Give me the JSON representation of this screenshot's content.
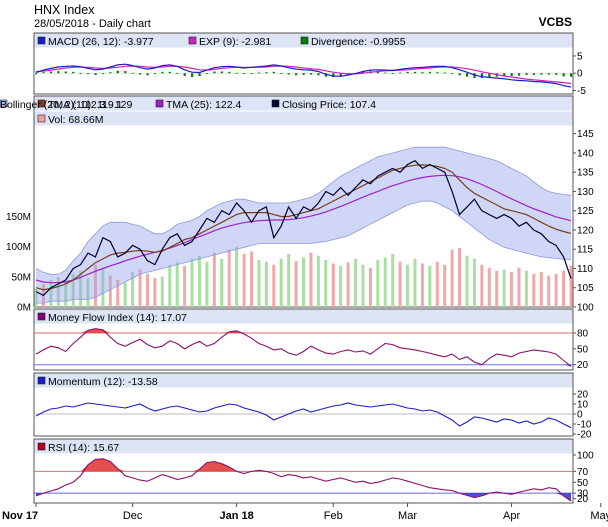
{
  "header": {
    "title": "HNX Index",
    "subtitle": "28/05/2018 - Daily chart",
    "brand": "VCBS"
  },
  "x_axis": {
    "labels": [
      "Nov 17",
      "Dec",
      "Jan 18",
      "Feb",
      "Mar",
      "Apr",
      "May"
    ]
  },
  "chart_data": [
    {
      "type": "line",
      "panel": "macd",
      "legend": [
        {
          "label": "MACD (26, 12): -3.977",
          "color": "#1c1cc8"
        },
        {
          "label": "EXP (9): -2.981",
          "color": "#d020c0"
        },
        {
          "label": "Divergence: -0.9955",
          "color": "#008000"
        }
      ],
      "ylim": [
        -6,
        7
      ],
      "yticks": [
        5,
        0,
        -5
      ],
      "macd": [
        0.2,
        0.9,
        1.4,
        1.8,
        2.0,
        2.1,
        1.9,
        1.4,
        1.0,
        1.2,
        1.8,
        2.4,
        2.6,
        2.2,
        1.6,
        1.2,
        1.5,
        2.2,
        2.4,
        2.0,
        1.0,
        0.3,
        0.2,
        0.9,
        1.6,
        1.9,
        2.0,
        1.8,
        1.5,
        1.7,
        1.9,
        2.1,
        2.4,
        2.1,
        1.6,
        1.2,
        1.0,
        0.9,
        0.5,
        -0.3,
        -0.8,
        -0.9,
        -0.5,
        -0.1,
        0.5,
        0.9,
        1.0,
        0.9,
        0.8,
        1.1,
        1.4,
        1.6,
        1.7,
        1.9,
        2.0,
        2.0,
        1.6,
        1.0,
        0.3,
        -0.5,
        -1.0,
        -1.2,
        -1.4,
        -1.6,
        -1.9,
        -2.1,
        -2.2,
        -2.4,
        -2.5,
        -2.7,
        -3.0,
        -3.6,
        -3.977
      ],
      "exp": [
        0.5,
        0.6,
        0.9,
        1.2,
        1.5,
        1.7,
        1.8,
        1.7,
        1.5,
        1.4,
        1.5,
        1.7,
        2.0,
        2.1,
        2.0,
        1.8,
        1.7,
        1.8,
        2.0,
        2.0,
        1.8,
        1.4,
        1.0,
        0.9,
        1.1,
        1.4,
        1.6,
        1.7,
        1.7,
        1.7,
        1.7,
        1.8,
        2.0,
        2.1,
        2.0,
        1.8,
        1.5,
        1.3,
        1.1,
        0.7,
        0.3,
        0.0,
        -0.2,
        -0.2,
        0.0,
        0.3,
        0.5,
        0.7,
        0.8,
        0.9,
        1.0,
        1.2,
        1.4,
        1.5,
        1.7,
        1.8,
        1.8,
        1.6,
        1.3,
        0.9,
        0.4,
        0.0,
        -0.4,
        -0.8,
        -1.1,
        -1.4,
        -1.7,
        -1.9,
        -2.1,
        -2.3,
        -2.5,
        -2.7,
        -2.981
      ],
      "divergence": [
        -0.3,
        0.3,
        0.5,
        0.6,
        0.5,
        0.4,
        0.1,
        -0.3,
        -0.5,
        -0.2,
        0.3,
        0.7,
        0.6,
        0.1,
        -0.4,
        -0.6,
        -0.2,
        0.4,
        0.4,
        0.0,
        -0.8,
        -1.1,
        -0.8,
        0.0,
        0.5,
        0.5,
        0.4,
        0.1,
        -0.2,
        0.0,
        0.2,
        0.3,
        0.4,
        0.0,
        -0.4,
        -0.6,
        -0.5,
        -0.4,
        -0.6,
        -1.0,
        -1.1,
        -0.9,
        -0.3,
        0.1,
        0.5,
        0.6,
        0.5,
        0.2,
        0.0,
        0.2,
        0.4,
        0.4,
        0.3,
        0.4,
        0.3,
        0.2,
        -0.2,
        -0.6,
        -1.0,
        -1.4,
        -1.4,
        -1.2,
        -1.0,
        -0.8,
        -0.8,
        -0.7,
        -0.5,
        -0.5,
        -0.4,
        -0.4,
        -0.5,
        -0.9,
        -0.9955
      ]
    },
    {
      "type": "line",
      "panel": "price",
      "legend": [
        {
          "label": "TMA (10): 119.1",
          "color": "#7a3c1c"
        },
        {
          "label": "TMA (25): 122.4",
          "color": "#a020c8"
        },
        {
          "label": "Closing Price: 107.4",
          "color": "#000030"
        },
        {
          "label": "Bollinger (20, 2): 112.3 - 129",
          "color": "#aab4f0"
        },
        {
          "label": "Vol: 68.66M",
          "color": "#f0a0a0"
        }
      ],
      "ylim": [
        100,
        147
      ],
      "yticks": [
        145,
        140,
        135,
        130,
        125,
        120,
        115,
        110,
        105,
        100
      ],
      "vol_ylim": [
        0,
        300
      ],
      "vol_ticks": [
        {
          "v": 150,
          "label": "150M"
        },
        {
          "v": 100,
          "label": "100M"
        },
        {
          "v": 50,
          "label": "50M"
        },
        {
          "v": 0,
          "label": "0M"
        }
      ],
      "close": [
        104,
        103,
        105,
        106,
        107,
        110,
        111,
        114,
        113,
        118,
        117,
        113,
        114,
        116,
        115,
        112,
        111,
        115,
        118,
        119,
        116,
        117,
        120,
        123,
        122,
        125,
        124,
        127,
        125,
        122,
        125,
        126,
        118,
        121,
        126,
        123,
        126,
        125,
        127,
        130,
        129,
        131,
        129,
        131,
        133,
        132,
        134,
        135,
        136,
        135,
        137,
        138,
        136,
        137,
        136,
        135,
        130,
        124,
        126,
        128,
        125,
        124,
        123,
        124,
        123,
        121,
        122,
        120,
        119,
        117,
        116,
        113,
        107.4
      ],
      "tma10": [
        105,
        104.5,
        104.8,
        105.3,
        106,
        107,
        108.5,
        110,
        111.5,
        112.5,
        113.5,
        114,
        114.2,
        114.5,
        114.7,
        114.5,
        114.2,
        114.5,
        115.5,
        116.5,
        117.5,
        118,
        119,
        120,
        121,
        122,
        123,
        124,
        124.5,
        124.5,
        124.5,
        124.5,
        124,
        123.5,
        123.5,
        124,
        124.5,
        125,
        125.5,
        126.5,
        127.5,
        128.5,
        129.5,
        130.5,
        131.5,
        132.5,
        133.5,
        134.5,
        135.5,
        136,
        136.5,
        136.8,
        136.9,
        136.8,
        136.5,
        136,
        135,
        133,
        131,
        129.5,
        128.5,
        127.5,
        126.5,
        125.5,
        125,
        124.5,
        124,
        123,
        122,
        121,
        120.2,
        119.6,
        119.1
      ],
      "tma25": [
        107,
        106.5,
        106.3,
        106.3,
        106.5,
        107,
        107.7,
        108.5,
        109.3,
        110,
        110.7,
        111.3,
        112,
        112.6,
        113.2,
        113.7,
        114.2,
        114.7,
        115.3,
        116,
        116.7,
        117.5,
        118.3,
        119,
        119.8,
        120.5,
        121,
        121.5,
        121.9,
        122.2,
        122.4,
        122.5,
        122.6,
        122.6,
        122.7,
        122.9,
        123.2,
        123.6,
        124.1,
        124.7,
        125.4,
        126.1,
        126.9,
        127.7,
        128.5,
        129.3,
        130,
        130.8,
        131.5,
        132.1,
        132.7,
        133.2,
        133.6,
        133.9,
        134.1,
        134.2,
        134.1,
        133.8,
        133.3,
        132.6,
        131.8,
        130.9,
        130,
        129,
        128.1,
        127.2,
        126.3,
        125.5,
        124.8,
        124.1,
        123.4,
        122.9,
        122.4
      ],
      "boll_upper": [
        110,
        109,
        108.5,
        108.5,
        109.5,
        112,
        114,
        117,
        119,
        121,
        122,
        122,
        122,
        121.5,
        121,
        120,
        119,
        119,
        120,
        121.5,
        122,
        122.5,
        123.5,
        125,
        126,
        127,
        127.5,
        128,
        128,
        127.5,
        127,
        127,
        127,
        127,
        127,
        127.5,
        128,
        128.5,
        129.5,
        131,
        132.5,
        134,
        135,
        136,
        137,
        138,
        139,
        139.5,
        140,
        140.5,
        141,
        141.5,
        141.5,
        141.5,
        141.5,
        141.5,
        141,
        140.5,
        140,
        139.5,
        139,
        138.5,
        138,
        137,
        136,
        135,
        134,
        132.5,
        131,
        130,
        129.5,
        129.2,
        129
      ],
      "boll_lower": [
        101,
        101,
        101.5,
        101.5,
        101.5,
        102,
        102,
        102,
        102.5,
        103.5,
        104.5,
        105.5,
        106.5,
        107.5,
        108.5,
        109,
        109.5,
        110,
        110.5,
        111,
        111.5,
        112,
        112.5,
        113,
        113.5,
        114,
        114.5,
        115,
        115.5,
        116,
        116.5,
        116.5,
        116.5,
        116.5,
        116.5,
        116.5,
        116.5,
        116.5,
        116.8,
        117,
        117.5,
        118,
        118.5,
        119.5,
        120.5,
        121.5,
        122.5,
        123.5,
        124.5,
        125.5,
        126.5,
        127,
        127.5,
        127.5,
        127,
        126,
        125,
        123.5,
        122,
        120.5,
        119,
        117.5,
        116.5,
        115.5,
        115,
        114.5,
        114,
        113.5,
        113,
        112.8,
        112.6,
        112.4,
        112.3
      ],
      "volume": [
        30,
        38,
        45,
        50,
        42,
        55,
        60,
        48,
        70,
        65,
        52,
        45,
        40,
        58,
        62,
        55,
        48,
        50,
        70,
        75,
        68,
        80,
        85,
        75,
        90,
        80,
        95,
        100,
        88,
        92,
        78,
        75,
        70,
        80,
        88,
        76,
        82,
        90,
        85,
        78,
        72,
        68,
        74,
        80,
        70,
        65,
        78,
        82,
        88,
        75,
        70,
        80,
        72,
        68,
        75,
        70,
        95,
        98,
        85,
        80,
        70,
        65,
        60,
        62,
        58,
        65,
        60,
        55,
        58,
        52,
        55,
        60,
        68.66
      ]
    },
    {
      "type": "line",
      "panel": "mfi",
      "legend": [
        {
          "label": "Money Flow Index (14): 17.07",
          "color": "#800080"
        }
      ],
      "ylim": [
        10,
        95
      ],
      "yticks": [
        80,
        50,
        20
      ],
      "values": [
        40,
        48,
        55,
        52,
        45,
        60,
        72,
        85,
        88,
        86,
        72,
        60,
        55,
        62,
        68,
        58,
        52,
        55,
        65,
        60,
        50,
        58,
        64,
        55,
        60,
        72,
        82,
        84,
        78,
        70,
        60,
        55,
        48,
        50,
        42,
        38,
        45,
        55,
        48,
        42,
        40,
        45,
        48,
        44,
        46,
        40,
        50,
        60,
        58,
        52,
        50,
        48,
        45,
        42,
        38,
        35,
        40,
        30,
        35,
        25,
        20,
        32,
        40,
        38,
        35,
        42,
        45,
        48,
        46,
        44,
        40,
        28,
        17.07
      ]
    },
    {
      "type": "line",
      "panel": "momentum",
      "legend": [
        {
          "label": "Momentum (12): -13.58",
          "color": "#1c1cc8"
        }
      ],
      "ylim": [
        -22,
        25
      ],
      "yticks": [
        20,
        10,
        0,
        -10,
        -20
      ],
      "values": [
        -2,
        2,
        5,
        6,
        8,
        7,
        9,
        11,
        10,
        9,
        8,
        7,
        6,
        8,
        10,
        6,
        3,
        5,
        7,
        8,
        6,
        4,
        2,
        3,
        6,
        8,
        10,
        9,
        6,
        4,
        2,
        -1,
        -6,
        -3,
        0,
        3,
        5,
        2,
        4,
        6,
        8,
        9,
        11,
        9,
        8,
        7,
        8,
        9,
        10,
        8,
        6,
        5,
        3,
        4,
        2,
        -2,
        -6,
        -12,
        -8,
        -3,
        -4,
        -6,
        -8,
        -5,
        -6,
        -9,
        -7,
        -10,
        -8,
        -4,
        -6,
        -10,
        -13.58
      ]
    },
    {
      "type": "line",
      "panel": "rsi",
      "legend": [
        {
          "label": "RSI (14): 15.67",
          "color": "#b00020"
        }
      ],
      "ylim": [
        12,
        100
      ],
      "yticks": [
        100,
        70,
        50,
        30,
        20
      ],
      "values": [
        25,
        30,
        34,
        38,
        45,
        50,
        62,
        82,
        92,
        93,
        88,
        75,
        62,
        58,
        54,
        52,
        58,
        64,
        60,
        55,
        58,
        62,
        74,
        86,
        88,
        84,
        78,
        70,
        66,
        70,
        72,
        70,
        66,
        60,
        64,
        62,
        58,
        60,
        56,
        52,
        55,
        58,
        54,
        50,
        52,
        48,
        50,
        54,
        58,
        56,
        52,
        48,
        44,
        40,
        38,
        36,
        35,
        30,
        26,
        22,
        25,
        30,
        32,
        30,
        28,
        32,
        35,
        38,
        36,
        40,
        38,
        25,
        15.67
      ]
    }
  ]
}
